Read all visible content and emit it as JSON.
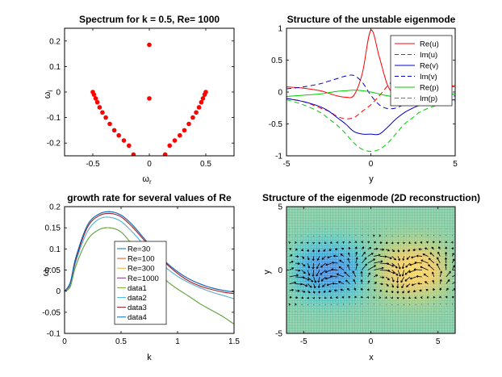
{
  "figure": {
    "background": "#ffffff"
  },
  "chart_data": [
    {
      "id": "spectrum",
      "type": "scatter",
      "title": "Spectrum for k = 0.5, Re= 1000",
      "xlabel": "ω",
      "xlabel_sub": "r",
      "ylabel": "ω",
      "ylabel_sub": "i",
      "xlim": [
        -0.75,
        0.75
      ],
      "ylim": [
        -0.25,
        0.25
      ],
      "xticks": [
        -0.5,
        0,
        0.5
      ],
      "xtick_labels": [
        "-0.5",
        "0",
        "0.5"
      ],
      "yticks": [
        -0.2,
        -0.1,
        0,
        0.1,
        0.2
      ],
      "ytick_labels": [
        "-0.2",
        "-0.1",
        "0",
        "0.1",
        "0.2"
      ],
      "marker_color": "#ff0000",
      "points": [
        {
          "x": 0.0,
          "y": 0.185
        },
        {
          "x": 0.0,
          "y": -0.025
        },
        {
          "x": -0.5,
          "y": 0.0
        },
        {
          "x": -0.49,
          "y": -0.01
        },
        {
          "x": -0.475,
          "y": -0.025
        },
        {
          "x": -0.46,
          "y": -0.04
        },
        {
          "x": -0.44,
          "y": -0.06
        },
        {
          "x": -0.415,
          "y": -0.08
        },
        {
          "x": -0.385,
          "y": -0.1
        },
        {
          "x": -0.35,
          "y": -0.125
        },
        {
          "x": -0.31,
          "y": -0.15
        },
        {
          "x": -0.27,
          "y": -0.17
        },
        {
          "x": -0.225,
          "y": -0.19
        },
        {
          "x": -0.18,
          "y": -0.21
        },
        {
          "x": -0.14,
          "y": -0.245
        },
        {
          "x": 0.5,
          "y": 0.0
        },
        {
          "x": 0.49,
          "y": -0.01
        },
        {
          "x": 0.475,
          "y": -0.025
        },
        {
          "x": 0.46,
          "y": -0.04
        },
        {
          "x": 0.44,
          "y": -0.06
        },
        {
          "x": 0.415,
          "y": -0.08
        },
        {
          "x": 0.385,
          "y": -0.1
        },
        {
          "x": 0.35,
          "y": -0.125
        },
        {
          "x": 0.31,
          "y": -0.15
        },
        {
          "x": 0.27,
          "y": -0.17
        },
        {
          "x": 0.225,
          "y": -0.19
        },
        {
          "x": 0.18,
          "y": -0.21
        },
        {
          "x": 0.14,
          "y": -0.245
        }
      ]
    },
    {
      "id": "eigenmode",
      "type": "line",
      "title": "Structure of the unstable eigenmode",
      "xlabel": "y",
      "ylabel": "",
      "xlim": [
        -5,
        5
      ],
      "ylim": [
        -1,
        1
      ],
      "xticks": [
        -5,
        0,
        5
      ],
      "xtick_labels": [
        "-5",
        "0",
        "5"
      ],
      "yticks": [
        -1,
        -0.5,
        0,
        0.5,
        1
      ],
      "ytick_labels": [
        "-1",
        "-0.5",
        "0",
        "0.5",
        "1"
      ],
      "legend_position": "top-right",
      "x": [
        -5,
        -4,
        -3,
        -2.5,
        -2,
        -1.5,
        -1,
        -0.5,
        0,
        0.5,
        1,
        1.5,
        2,
        2.5,
        3,
        4,
        5
      ],
      "series": [
        {
          "name": "Re(u)",
          "color": "#ff0000",
          "dash": "solid",
          "values": [
            0.08,
            0.06,
            0.02,
            -0.02,
            -0.06,
            -0.08,
            -0.05,
            0.3,
            0.97,
            0.55,
            0.1,
            -0.05,
            -0.04,
            0.02,
            0.05,
            0.08,
            0.1
          ]
        },
        {
          "name": "Im(u)",
          "color": "#ff0000",
          "dash": "dashed",
          "values": [
            -0.1,
            -0.15,
            -0.25,
            -0.3,
            -0.38,
            -0.42,
            -0.4,
            -0.3,
            -0.2,
            -0.06,
            0.1,
            0.22,
            0.28,
            0.25,
            0.2,
            0.12,
            0.08
          ]
        },
        {
          "name": "Re(v)",
          "color": "#0000cc",
          "dash": "solid",
          "values": [
            -0.1,
            -0.15,
            -0.23,
            -0.3,
            -0.4,
            -0.5,
            -0.62,
            -0.66,
            -0.66,
            -0.66,
            -0.55,
            -0.42,
            -0.32,
            -0.25,
            -0.2,
            -0.15,
            -0.12
          ]
        },
        {
          "name": "Im(v)",
          "color": "#0000cc",
          "dash": "dashed",
          "values": [
            0.05,
            0.08,
            0.13,
            0.17,
            0.21,
            0.25,
            0.26,
            0.15,
            -0.05,
            -0.2,
            -0.26,
            -0.25,
            -0.19,
            -0.15,
            -0.1,
            -0.08,
            -0.06
          ]
        },
        {
          "name": "Re(p)",
          "color": "#00cc00",
          "dash": "solid",
          "values": [
            -0.07,
            -0.05,
            -0.03,
            -0.01,
            0.01,
            0.02,
            0.03,
            0.02,
            0.0,
            -0.03,
            -0.06,
            -0.07,
            -0.07,
            -0.06,
            -0.05,
            -0.04,
            -0.03
          ]
        },
        {
          "name": "Im(p)",
          "color": "#00cc00",
          "dash": "dashed",
          "values": [
            -0.12,
            -0.2,
            -0.32,
            -0.42,
            -0.52,
            -0.65,
            -0.8,
            -0.9,
            -0.93,
            -0.9,
            -0.8,
            -0.65,
            -0.5,
            -0.4,
            -0.3,
            -0.2,
            -0.14
          ]
        }
      ]
    },
    {
      "id": "growth",
      "type": "line",
      "title": "growth rate for several values of Re",
      "xlabel": "k",
      "ylabel": "ω",
      "ylabel_sub": "i",
      "xlim": [
        0,
        1.5
      ],
      "ylim": [
        -0.1,
        0.2
      ],
      "xticks": [
        0,
        0.5,
        1,
        1.5
      ],
      "xtick_labels": [
        "0",
        "0.5",
        "1",
        "1.5"
      ],
      "yticks": [
        -0.1,
        -0.05,
        0,
        0.05,
        0.1,
        0.15,
        0.2
      ],
      "ytick_labels": [
        "-0.1",
        "-0.05",
        "0",
        "0.05",
        "0.1",
        "0.15",
        "0.2"
      ],
      "legend_position": "center",
      "x": [
        0,
        0.05,
        0.1,
        0.2,
        0.3,
        0.4,
        0.5,
        0.6,
        0.7,
        0.8,
        0.9,
        1.0,
        1.1,
        1.2,
        1.3,
        1.4,
        1.5
      ],
      "series": [
        {
          "name": "Re=30",
          "color": "#0072bd",
          "values": [
            0.0,
            0.01,
            0.06,
            0.12,
            0.145,
            0.15,
            0.14,
            0.11,
            0.08,
            0.05,
            0.025,
            0.005,
            -0.012,
            -0.03,
            -0.045,
            -0.06,
            -0.078
          ]
        },
        {
          "name": "Re=100",
          "color": "#d95319",
          "values": [
            0.0,
            0.015,
            0.07,
            0.14,
            0.17,
            0.175,
            0.165,
            0.14,
            0.11,
            0.08,
            0.055,
            0.035,
            0.02,
            0.008,
            -0.002,
            -0.01,
            -0.018
          ]
        },
        {
          "name": "Re=300",
          "color": "#edb120",
          "values": [
            0.0,
            0.018,
            0.075,
            0.15,
            0.178,
            0.184,
            0.176,
            0.152,
            0.122,
            0.092,
            0.065,
            0.042,
            0.024,
            0.012,
            0.004,
            -0.002,
            -0.006
          ]
        },
        {
          "name": "Re=1000",
          "color": "#7e2f8e",
          "values": [
            0.0,
            0.02,
            0.08,
            0.155,
            0.182,
            0.188,
            0.18,
            0.157,
            0.126,
            0.095,
            0.068,
            0.046,
            0.029,
            0.017,
            0.008,
            0.002,
            -0.002
          ]
        },
        {
          "name": "data1",
          "color": "#77ac30",
          "values": [
            0.0,
            0.01,
            0.06,
            0.12,
            0.145,
            0.15,
            0.14,
            0.11,
            0.08,
            0.05,
            0.025,
            0.005,
            -0.012,
            -0.03,
            -0.045,
            -0.06,
            -0.078
          ]
        },
        {
          "name": "data2",
          "color": "#4dbeee",
          "values": [
            0.0,
            0.015,
            0.07,
            0.14,
            0.17,
            0.175,
            0.165,
            0.14,
            0.11,
            0.08,
            0.055,
            0.035,
            0.02,
            0.008,
            -0.002,
            -0.01,
            -0.018
          ]
        },
        {
          "name": "data3",
          "color": "#a2142f",
          "values": [
            0.0,
            0.018,
            0.075,
            0.15,
            0.178,
            0.184,
            0.176,
            0.152,
            0.122,
            0.092,
            0.065,
            0.042,
            0.024,
            0.012,
            0.004,
            -0.002,
            -0.006
          ]
        },
        {
          "name": "data4",
          "color": "#0072bd",
          "values": [
            0.0,
            0.02,
            0.08,
            0.155,
            0.182,
            0.188,
            0.18,
            0.157,
            0.126,
            0.095,
            0.068,
            0.046,
            0.029,
            0.017,
            0.008,
            0.002,
            -0.002
          ]
        }
      ]
    },
    {
      "id": "reconstruction",
      "type": "heatmap",
      "title": "Structure of the eigenmode (2D reconstruction)",
      "xlabel": "x",
      "ylabel": "y",
      "xlim": [
        -6.28,
        6.28
      ],
      "ylim": [
        -5,
        5
      ],
      "xticks": [
        -5,
        0,
        5
      ],
      "xtick_labels": [
        "-5",
        "0",
        "5"
      ],
      "yticks": [
        -5,
        0,
        5
      ],
      "ytick_labels": [
        "-5",
        "0",
        "5"
      ],
      "colormap": "parula",
      "field": "pressure with velocity quiver",
      "k": 0.5,
      "amplitude": 1
    }
  ]
}
